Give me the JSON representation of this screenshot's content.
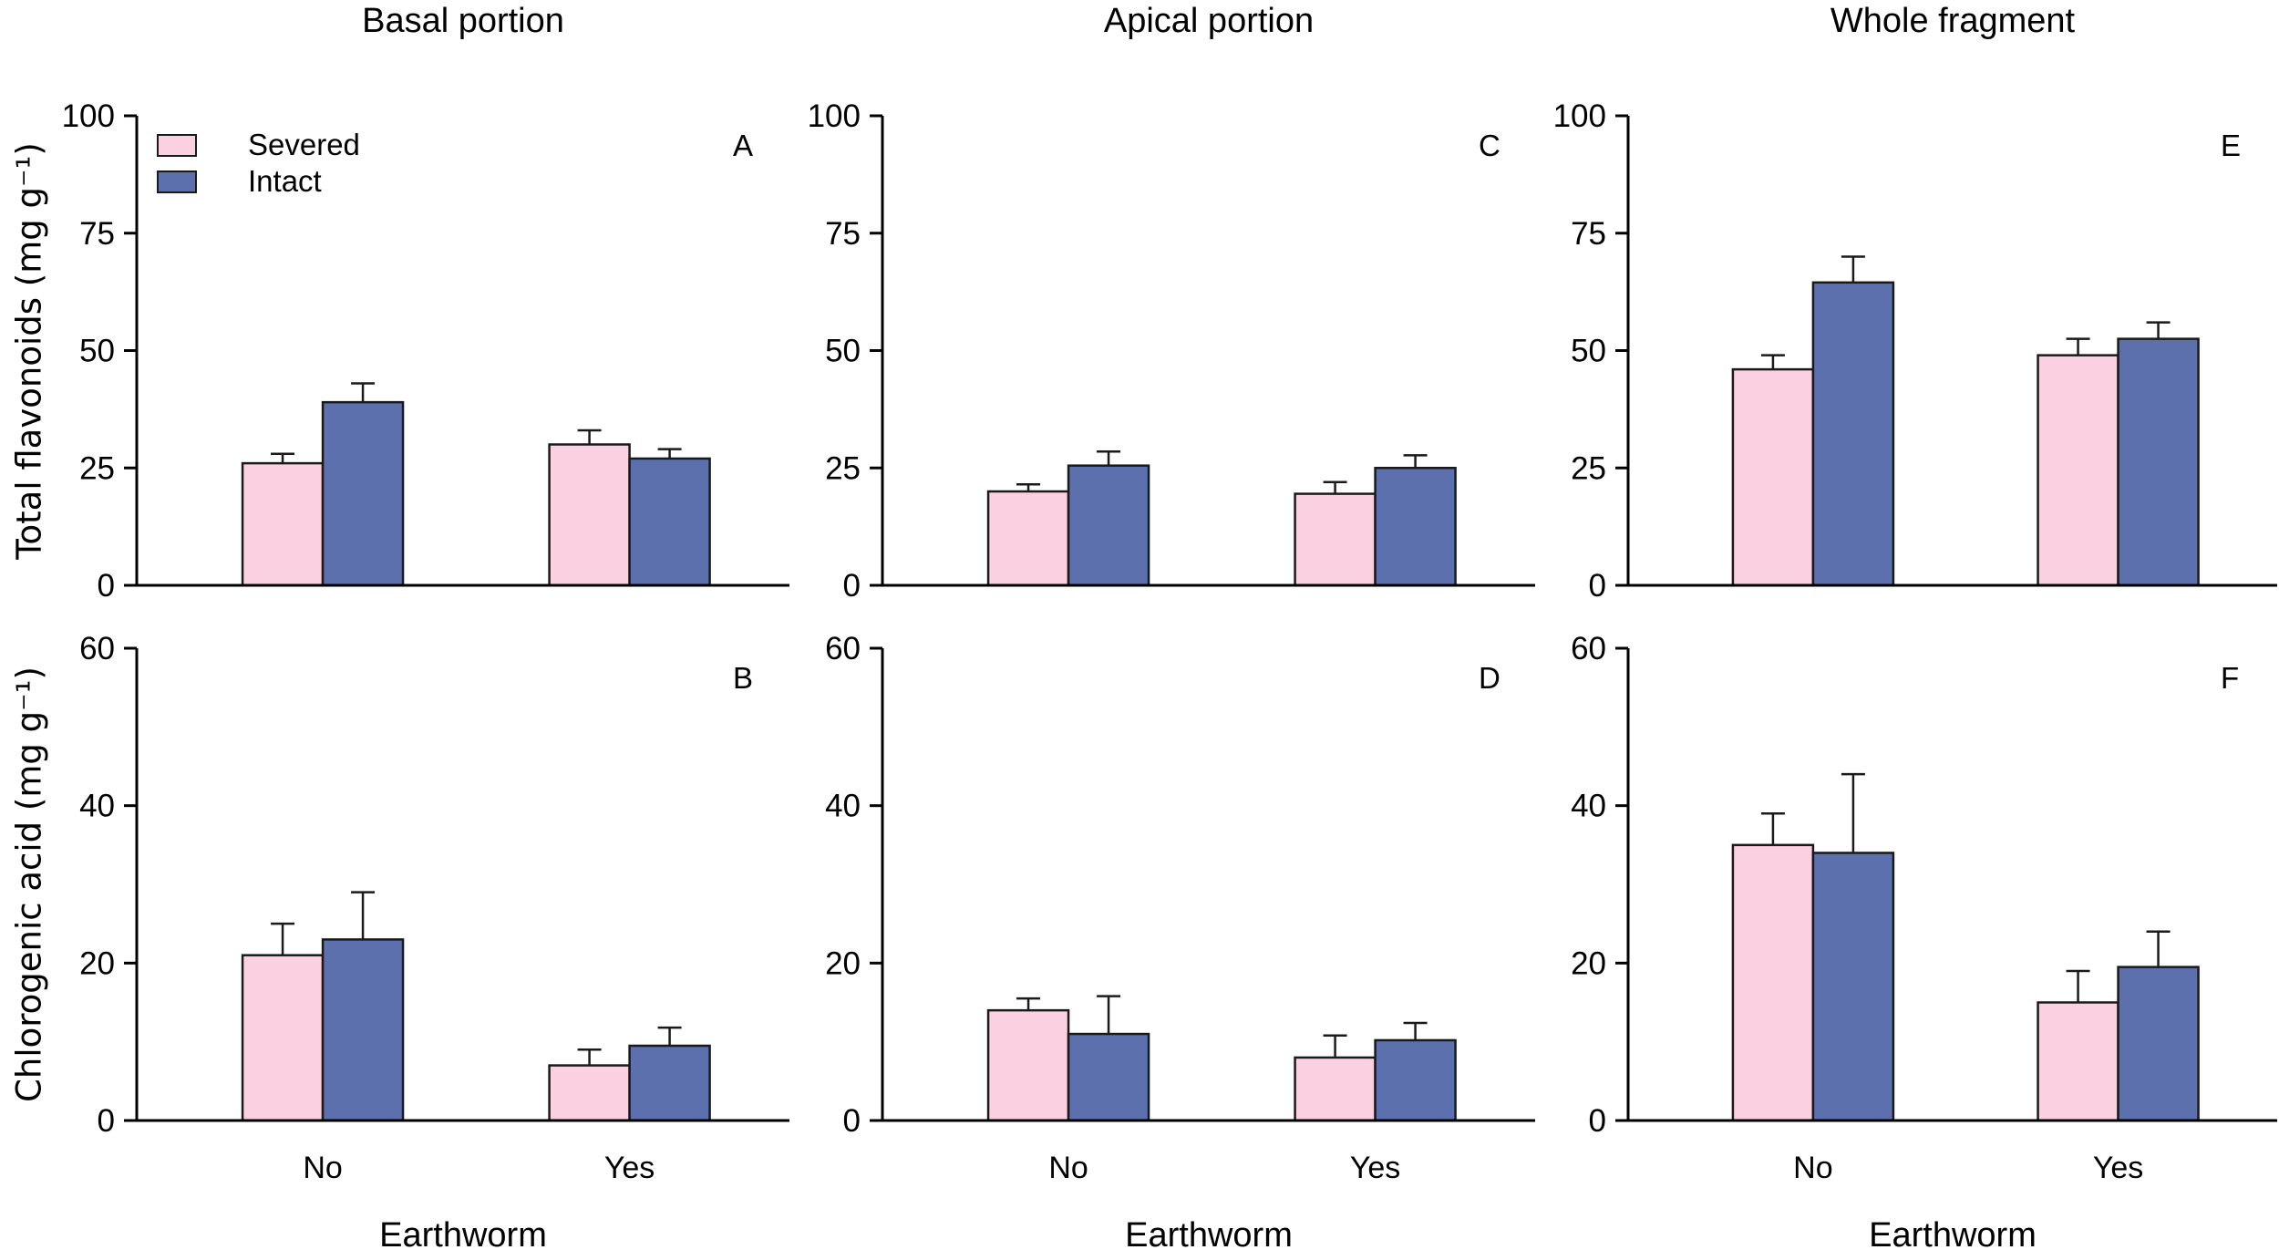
{
  "figure": {
    "column_titles": [
      "Basal portion",
      "Apical portion",
      "Whole fragment"
    ],
    "row_y_labels": [
      "Total flavonoids (mg g⁻¹)",
      "Chlorogenic acid (mg g⁻¹)"
    ],
    "x_axis_title": "Earthworm",
    "x_categories": [
      "No",
      "Yes"
    ],
    "legend": [
      {
        "label": "Severed",
        "color": "#FBD0E1"
      },
      {
        "label": "Intact",
        "color": "#5C70AD"
      }
    ],
    "bar_outline_color": "#1A1A1A",
    "axis_color": "#000000"
  },
  "chart_data": [
    {
      "type": "bar",
      "panel_letter": "A",
      "row": 0,
      "col": 0,
      "column_title": "Basal portion",
      "ylabel": "Total flavonoids (mg g⁻¹)",
      "xlabel": "Earthworm",
      "ylim": [
        0,
        100
      ],
      "yticks": [
        0,
        25,
        50,
        75,
        100
      ],
      "categories": [
        "No",
        "Yes"
      ],
      "series": [
        {
          "name": "Severed",
          "values": [
            26,
            30
          ],
          "errors": [
            2,
            3
          ]
        },
        {
          "name": "Intact",
          "values": [
            39,
            27
          ],
          "errors": [
            4,
            2
          ]
        }
      ],
      "legend_position": "top-left",
      "grid": false
    },
    {
      "type": "bar",
      "panel_letter": "B",
      "row": 1,
      "col": 0,
      "column_title": "Basal portion",
      "ylabel": "Chlorogenic acid (mg g⁻¹)",
      "xlabel": "Earthworm",
      "ylim": [
        0,
        60
      ],
      "yticks": [
        0,
        20,
        40,
        60
      ],
      "categories": [
        "No",
        "Yes"
      ],
      "series": [
        {
          "name": "Severed",
          "values": [
            21,
            7
          ],
          "errors": [
            4,
            2
          ]
        },
        {
          "name": "Intact",
          "values": [
            23,
            9.5
          ],
          "errors": [
            6,
            2.3
          ]
        }
      ],
      "legend_position": "none",
      "grid": false
    },
    {
      "type": "bar",
      "panel_letter": "C",
      "row": 0,
      "col": 1,
      "column_title": "Apical portion",
      "ylabel": "Total flavonoids (mg g⁻¹)",
      "xlabel": "Earthworm",
      "ylim": [
        0,
        100
      ],
      "yticks": [
        0,
        25,
        50,
        75,
        100
      ],
      "categories": [
        "No",
        "Yes"
      ],
      "series": [
        {
          "name": "Severed",
          "values": [
            20,
            19.5
          ],
          "errors": [
            1.5,
            2.5
          ]
        },
        {
          "name": "Intact",
          "values": [
            25.5,
            25
          ],
          "errors": [
            3,
            2.7
          ]
        }
      ],
      "legend_position": "none",
      "grid": false
    },
    {
      "type": "bar",
      "panel_letter": "D",
      "row": 1,
      "col": 1,
      "column_title": "Apical portion",
      "ylabel": "Chlorogenic acid (mg g⁻¹)",
      "xlabel": "Earthworm",
      "ylim": [
        0,
        60
      ],
      "yticks": [
        0,
        20,
        40,
        60
      ],
      "categories": [
        "No",
        "Yes"
      ],
      "series": [
        {
          "name": "Severed",
          "values": [
            14,
            8
          ],
          "errors": [
            1.5,
            2.8
          ]
        },
        {
          "name": "Intact",
          "values": [
            11,
            10.2
          ],
          "errors": [
            4.8,
            2.2
          ]
        }
      ],
      "legend_position": "none",
      "grid": false
    },
    {
      "type": "bar",
      "panel_letter": "E",
      "row": 0,
      "col": 2,
      "column_title": "Whole fragment",
      "ylabel": "Total flavonoids (mg g⁻¹)",
      "xlabel": "Earthworm",
      "ylim": [
        0,
        100
      ],
      "yticks": [
        0,
        25,
        50,
        75,
        100
      ],
      "categories": [
        "No",
        "Yes"
      ],
      "series": [
        {
          "name": "Severed",
          "values": [
            46,
            49
          ],
          "errors": [
            3,
            3.5
          ]
        },
        {
          "name": "Intact",
          "values": [
            64.5,
            52.5
          ],
          "errors": [
            5.5,
            3.5
          ]
        }
      ],
      "legend_position": "none",
      "grid": false
    },
    {
      "type": "bar",
      "panel_letter": "F",
      "row": 1,
      "col": 2,
      "column_title": "Whole fragment",
      "ylabel": "Chlorogenic acid (mg g⁻¹)",
      "xlabel": "Earthworm",
      "ylim": [
        0,
        60
      ],
      "yticks": [
        0,
        20,
        40,
        60
      ],
      "categories": [
        "No",
        "Yes"
      ],
      "series": [
        {
          "name": "Severed",
          "values": [
            35,
            15
          ],
          "errors": [
            4,
            4
          ]
        },
        {
          "name": "Intact",
          "values": [
            34,
            19.5
          ],
          "errors": [
            10,
            4.5
          ]
        }
      ],
      "legend_position": "none",
      "grid": false
    }
  ]
}
